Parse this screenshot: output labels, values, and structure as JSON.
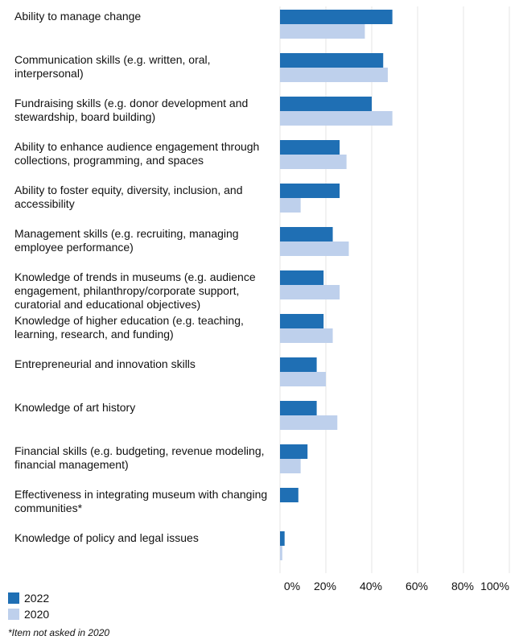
{
  "chart_data": {
    "type": "bar",
    "orientation": "horizontal",
    "categories": [
      "Ability to manage change",
      "Communication skills (e.g. written, oral, interpersonal)",
      "Fundraising skills (e.g. donor development and stewardship, board building)",
      "Ability to enhance audience engagement through collections, programming, and spaces",
      "Ability to foster equity, diversity, inclusion, and accessibility",
      "Management skills (e.g. recruiting, managing employee performance)",
      "Knowledge of trends in museums (e.g. audience engagement, philanthropy/corporate support, curatorial and educational objectives)",
      "Knowledge of higher education (e.g. teaching, learning, research, and funding)",
      "Entrepreneurial and innovation skills",
      "Knowledge of art history",
      "Financial skills (e.g. budgeting, revenue modeling, financial management)",
      "Effectiveness in integrating museum with changing communities*",
      "Knowledge of policy and legal issues"
    ],
    "series": [
      {
        "name": "2022",
        "color": "#1f6fb4",
        "values": [
          49,
          45,
          40,
          26,
          26,
          23,
          19,
          19,
          16,
          16,
          12,
          8,
          2
        ]
      },
      {
        "name": "2020",
        "color": "#bed0ec",
        "values": [
          37,
          47,
          49,
          29,
          9,
          30,
          26,
          23,
          20,
          25,
          9,
          null,
          1
        ]
      }
    ],
    "xlim": [
      0,
      100
    ],
    "xticks": [
      "0%",
      "20%",
      "40%",
      "60%",
      "80%",
      "100%"
    ],
    "grid": true,
    "legend": "bottom-left"
  },
  "footnote": "*Item not asked in 2020"
}
